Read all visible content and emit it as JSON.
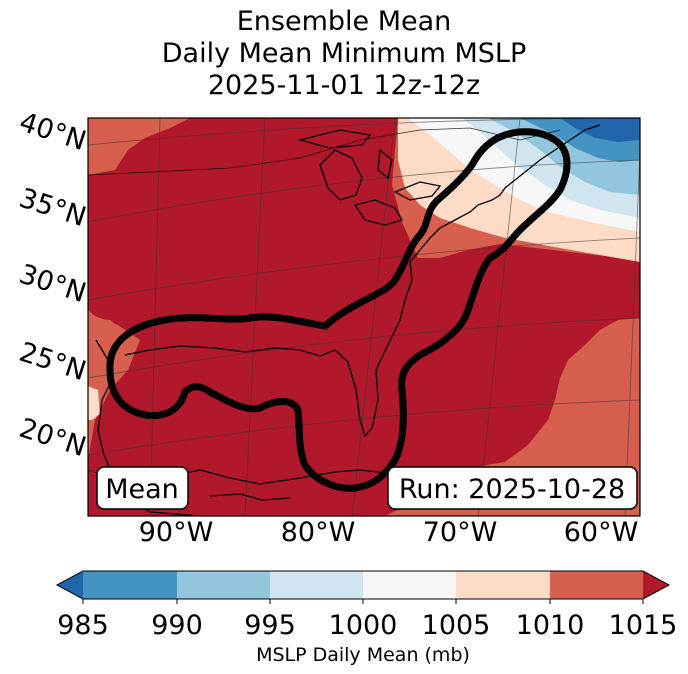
{
  "title": {
    "line1": "Ensemble Mean",
    "line2": "Daily Mean Minimum MSLP",
    "line3": "2025-11-01 12z-12z"
  },
  "map": {
    "lat_labels": [
      "40°N",
      "35°N",
      "30°N",
      "25°N",
      "20°N"
    ],
    "lon_labels": [
      "90°W",
      "80°W",
      "70°W",
      "60°W"
    ],
    "mean_box": "Mean",
    "run_box": "Run: 2025-10-28"
  },
  "colorbar": {
    "ticks": [
      "985",
      "990",
      "995",
      "1000",
      "1005",
      "1010",
      "1015"
    ],
    "label": "MSLP Daily Mean (mb)",
    "colors": {
      "under": "#2166ac",
      "b985_990": "#4393c3",
      "b990_995": "#92c5de",
      "b995_1000": "#d1e5f0",
      "b1000_1005": "#f7f7f7",
      "b1005_1010": "#fddbc7",
      "b1010_1015": "#d6604d",
      "over": "#b2182b"
    }
  }
}
